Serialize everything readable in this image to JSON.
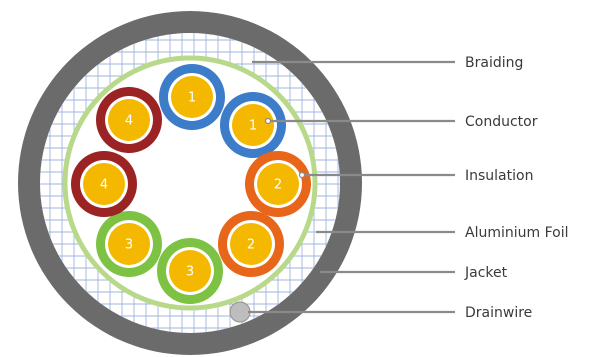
{
  "colors": {
    "jacket": "#6b6b6b",
    "braid_background": "#ffffff",
    "braid_mesh": "#9fb6dd",
    "aluminium_foil": "#b8d98a",
    "conductor_fill": "#f5b800",
    "leader_line": "#8a8a8a",
    "drainwire": "#bdbdbd",
    "pair_1_insulation": "#3d7cc9",
    "pair_2_insulation": "#e8661a",
    "pair_3_insulation": "#7dc242",
    "pair_4_insulation": "#9b2323"
  },
  "cores": [
    {
      "number": "1",
      "insulation": "pair_1_insulation"
    },
    {
      "number": "1",
      "insulation": "pair_1_insulation"
    },
    {
      "number": "2",
      "insulation": "pair_2_insulation"
    },
    {
      "number": "2",
      "insulation": "pair_2_insulation"
    },
    {
      "number": "3",
      "insulation": "pair_3_insulation"
    },
    {
      "number": "3",
      "insulation": "pair_3_insulation"
    },
    {
      "number": "4",
      "insulation": "pair_4_insulation"
    },
    {
      "number": "4",
      "insulation": "pair_4_insulation"
    }
  ],
  "callouts": {
    "braiding": "Braiding",
    "conductor": "Conductor",
    "insulation": "Insulation",
    "aluminium_foil": "Aluminium Foil",
    "jacket": "Jacket",
    "drainwire": "Drainwire"
  }
}
